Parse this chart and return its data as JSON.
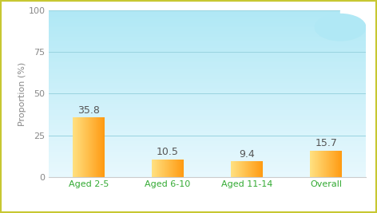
{
  "categories": [
    "Aged 2-5",
    "Aged 6-10",
    "Aged 11-14",
    "Overall"
  ],
  "values": [
    35.8,
    10.5,
    9.4,
    15.7
  ],
  "ylabel": "Proportion (%)",
  "ylim": [
    0,
    100
  ],
  "yticks": [
    0,
    25,
    50,
    75,
    100
  ],
  "grid_color": "#99d4e0",
  "bg_plot_top": "#b0e8f5",
  "bg_plot_bottom": "#ddf4fb",
  "outer_border_color": "#c8c832",
  "figure_bg": "#ffffff",
  "label_color": "#888888",
  "xlabel_color": "#33aa33",
  "value_label_color": "#555555",
  "bar_color_light": "#FFE080",
  "bar_color_dark": "#FFA020",
  "bar_width": 0.4,
  "label_fontsize": 8,
  "value_fontsize": 9,
  "ylabel_fontsize": 8
}
